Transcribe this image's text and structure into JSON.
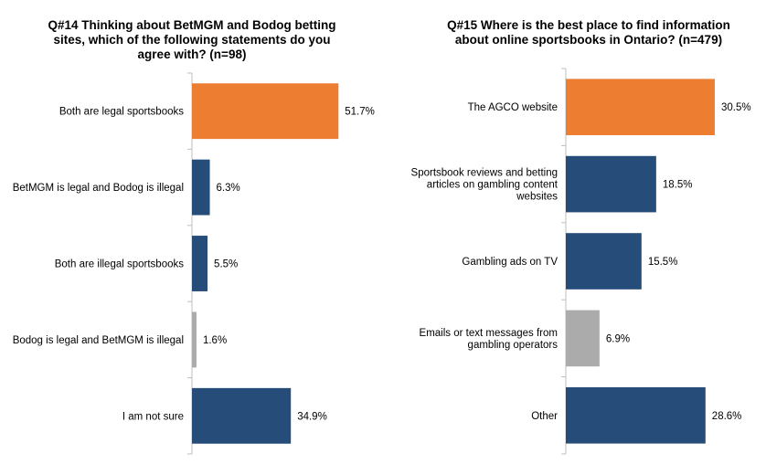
{
  "colors": {
    "highlight": "#ED7D31",
    "primary": "#264D7A",
    "muted": "#ABABAB",
    "axis": "#BFBFBF"
  },
  "chart_data": [
    {
      "type": "bar",
      "orientation": "horizontal",
      "title": "Q#14 Thinking about BetMGM and Bodog betting\nsites, which of the following statements do you\nagree with? (n=98)",
      "categories": [
        "Both are legal sportsbooks",
        "BetMGM is legal and Bodog is illegal",
        "Both are illegal sportsbooks",
        "Bodog is legal and BetMGM is illegal",
        "I am not sure"
      ],
      "values": [
        51.7,
        6.3,
        5.5,
        1.6,
        34.9
      ],
      "value_labels": [
        "51.7%",
        "6.3%",
        "5.5%",
        "1.6%",
        "34.9%"
      ],
      "bar_colors": [
        "highlight",
        "primary",
        "primary",
        "muted",
        "primary"
      ],
      "xlim": [
        0,
        60
      ]
    },
    {
      "type": "bar",
      "orientation": "horizontal",
      "title": "Q#15 Where is the best place to find information\nabout online sportsbooks in Ontario? (n=479)",
      "categories": [
        "The AGCO website",
        "Sportsbook reviews and betting\narticles on gambling content\nwebsites",
        "Gambling ads on TV",
        "Emails or text messages from\ngambling operators",
        "Other"
      ],
      "values": [
        30.5,
        18.5,
        15.5,
        6.9,
        28.6
      ],
      "value_labels": [
        "30.5%",
        "18.5%",
        "15.5%",
        "6.9%",
        "28.6%"
      ],
      "bar_colors": [
        "highlight",
        "primary",
        "primary",
        "muted",
        "primary"
      ],
      "xlim": [
        0,
        35
      ]
    }
  ]
}
